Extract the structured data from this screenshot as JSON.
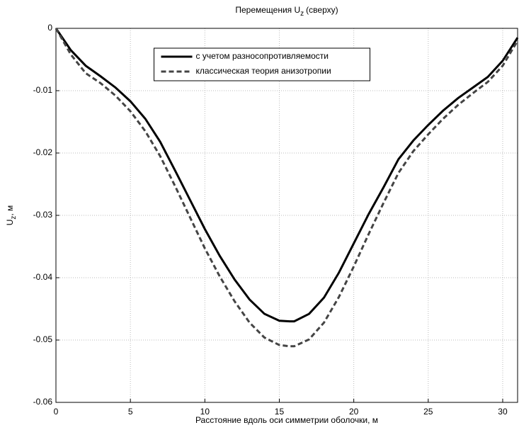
{
  "chart_data": {
    "type": "line",
    "title": "Перемещения U",
    "title_subscript": "z",
    "title_suffix": "(сверху)",
    "xlabel": "Расстояние вдоль оси симметрии оболочки, м",
    "ylabel": "U",
    "ylabel_subscript": "z",
    "ylabel_suffix": ", м",
    "x": [
      0,
      1,
      2,
      3,
      4,
      5,
      6,
      7,
      8,
      9,
      10,
      11,
      12,
      13,
      14,
      15,
      15.7,
      16,
      17,
      18,
      19,
      20,
      21,
      22,
      23,
      24,
      25,
      26,
      27,
      28,
      29,
      30,
      31
    ],
    "series": [
      {
        "name": "с учетом разносопротивляемости",
        "color": "#000000",
        "dash": "solid",
        "values": [
          0,
          -0.0035,
          -0.006,
          -0.0077,
          -0.0095,
          -0.0117,
          -0.0145,
          -0.0182,
          -0.0228,
          -0.0275,
          -0.0322,
          -0.0365,
          -0.0403,
          -0.0435,
          -0.0458,
          -0.0469,
          -0.047,
          -0.047,
          -0.0458,
          -0.0432,
          -0.0392,
          -0.0345,
          -0.0298,
          -0.0255,
          -0.021,
          -0.018,
          -0.0155,
          -0.0132,
          -0.0112,
          -0.0095,
          -0.0078,
          -0.0052,
          -0.0015
        ]
      },
      {
        "name": "классическая теория анизотропии",
        "color": "#444444",
        "dash": "dashed",
        "values": [
          0,
          -0.0042,
          -0.0072,
          -0.0088,
          -0.0108,
          -0.0133,
          -0.0165,
          -0.0205,
          -0.0253,
          -0.0303,
          -0.0353,
          -0.0398,
          -0.0438,
          -0.0472,
          -0.0496,
          -0.0508,
          -0.051,
          -0.051,
          -0.0499,
          -0.0472,
          -0.0431,
          -0.0382,
          -0.033,
          -0.028,
          -0.0232,
          -0.0197,
          -0.017,
          -0.0145,
          -0.0123,
          -0.0104,
          -0.0086,
          -0.006,
          -0.002
        ]
      }
    ],
    "xlim": [
      0,
      31
    ],
    "xticks": [
      0,
      5,
      10,
      15,
      20,
      25,
      30
    ],
    "ylim": [
      -0.06,
      0
    ],
    "yticks": [
      0,
      -0.01,
      -0.02,
      -0.03,
      -0.04,
      -0.05,
      -0.06
    ],
    "grid": true,
    "legend": "upper center"
  }
}
